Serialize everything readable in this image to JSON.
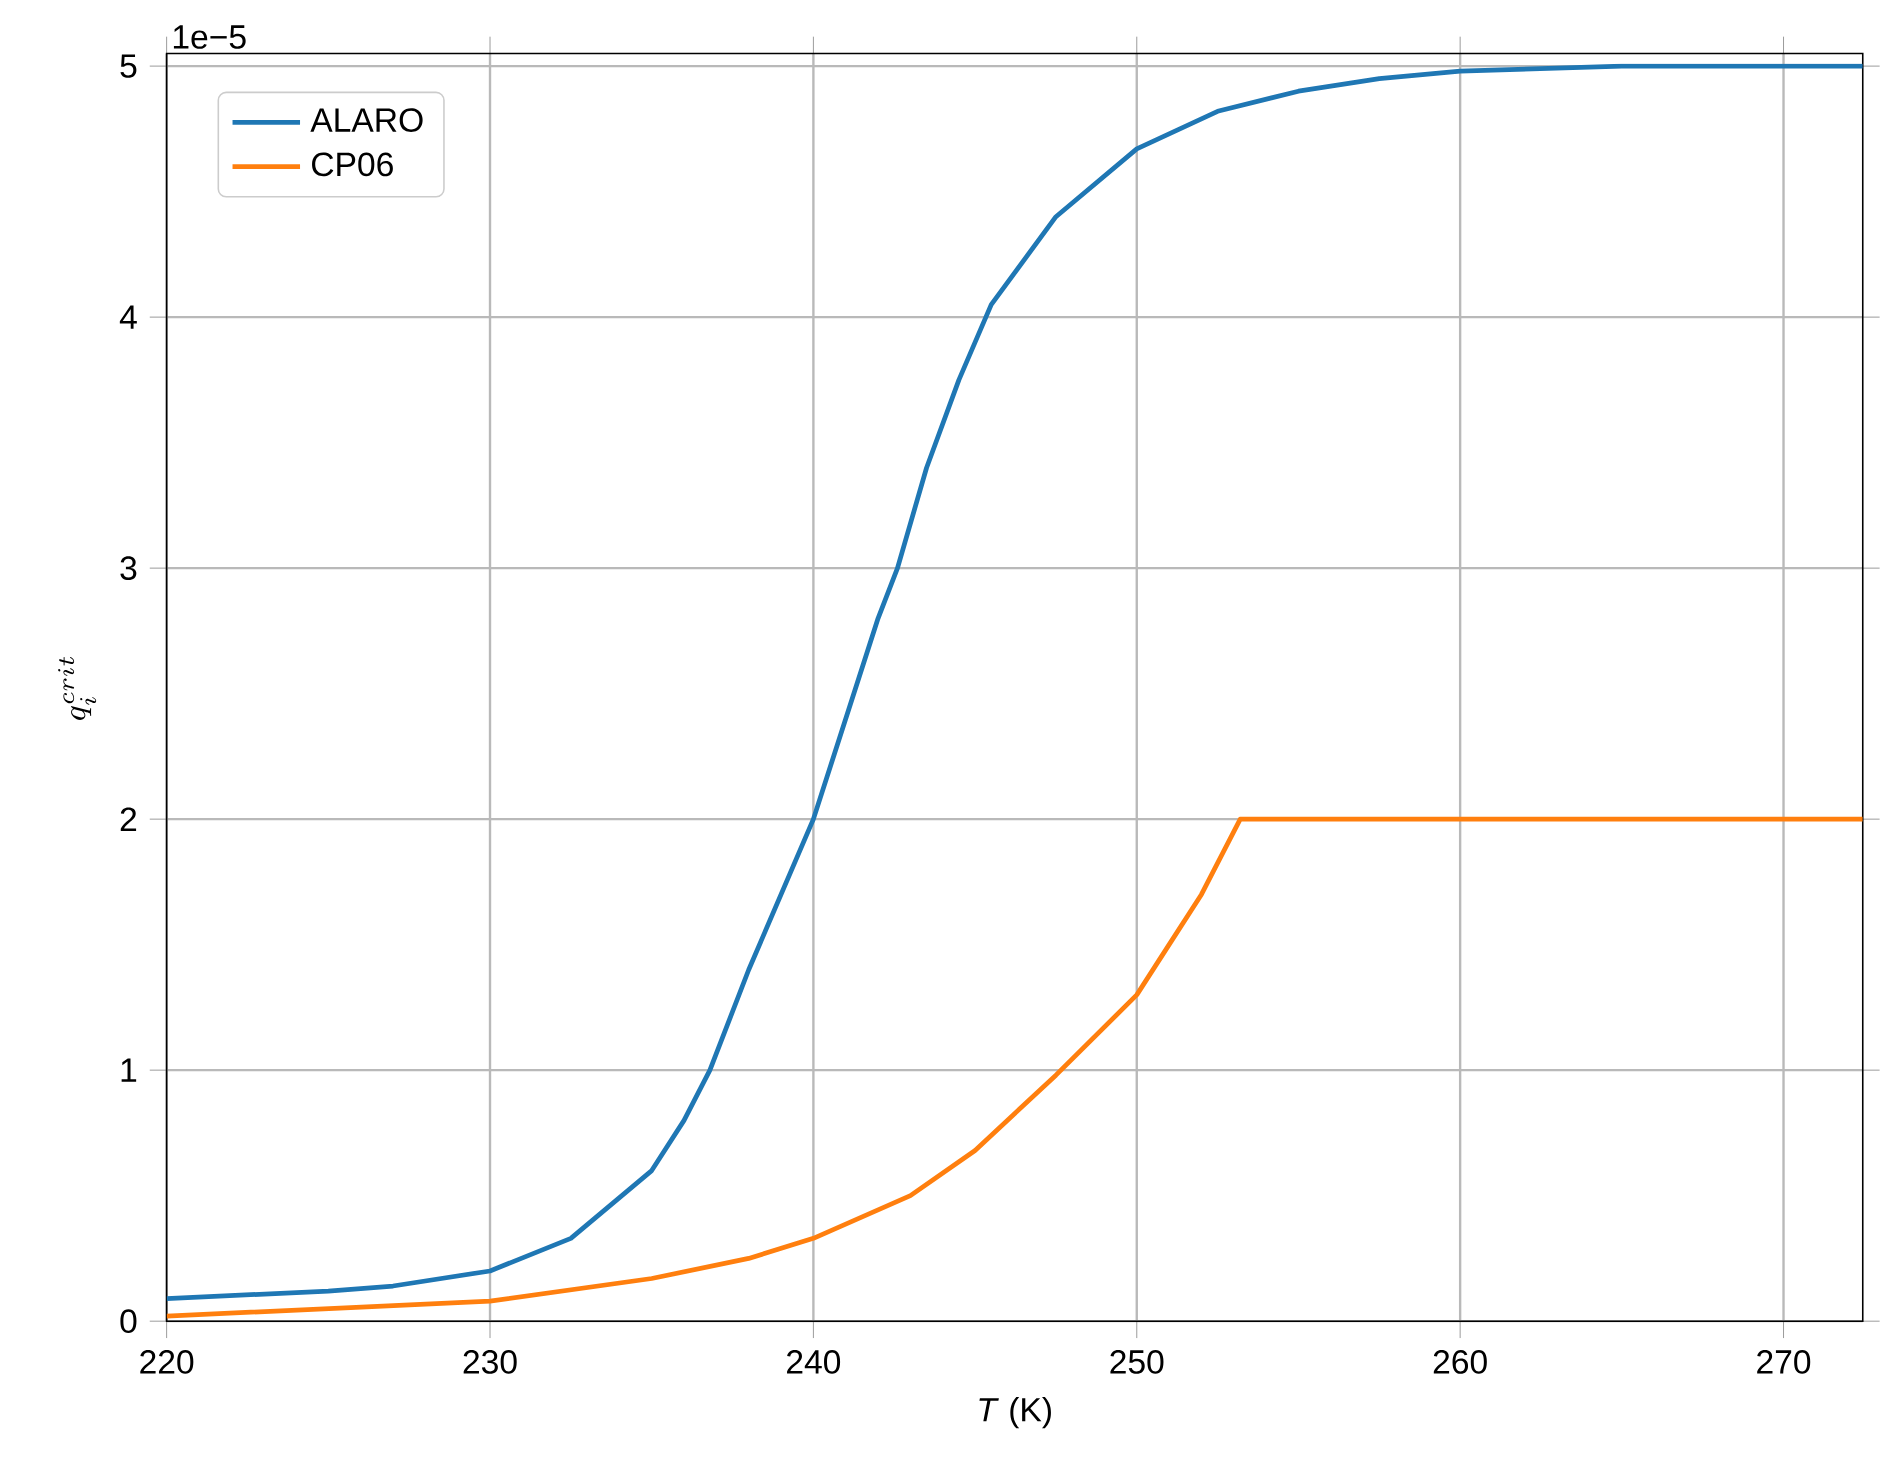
{
  "chart_data": {
    "type": "line",
    "xlabel": "*T* (K)",
    "ylabel": "q_i^{crit}",
    "xlim": [
      220,
      272.45
    ],
    "ylim": [
      0,
      5.05
    ],
    "xticks": [
      220,
      230,
      240,
      250,
      260,
      270
    ],
    "yticks": [
      0,
      1,
      2,
      3,
      4,
      5
    ],
    "annotations": [
      "1e−5"
    ],
    "grid": true,
    "legend": "top left",
    "line_style": "solid",
    "marker": "none",
    "series": [
      {
        "name": "ALARO",
        "color": "#1f77b4",
        "x": [
          220,
          225,
          227,
          230,
          232.5,
          235,
          236,
          236.8,
          238,
          239,
          240,
          241,
          242,
          242.6,
          243.5,
          244.5,
          245.5,
          247.5,
          250,
          252.5,
          255,
          257.5,
          260,
          265,
          272.45
        ],
        "values": [
          0.09,
          0.12,
          0.14,
          0.2,
          0.33,
          0.6,
          0.8,
          1.0,
          1.4,
          1.7,
          2.0,
          2.4,
          2.8,
          3.0,
          3.4,
          3.75,
          4.05,
          4.4,
          4.67,
          4.82,
          4.9,
          4.95,
          4.98,
          5.0,
          5.0
        ]
      },
      {
        "name": "CP06",
        "color": "#ff7f0e",
        "x": [
          220,
          225,
          230,
          235,
          238,
          240,
          243,
          245,
          247.5,
          250,
          251,
          252,
          253.2,
          260,
          272.45
        ],
        "values": [
          0.02,
          0.05,
          0.08,
          0.17,
          0.25,
          0.33,
          0.5,
          0.68,
          0.98,
          1.3,
          1.5,
          1.7,
          2.0,
          2.0,
          2.0
        ]
      }
    ]
  }
}
